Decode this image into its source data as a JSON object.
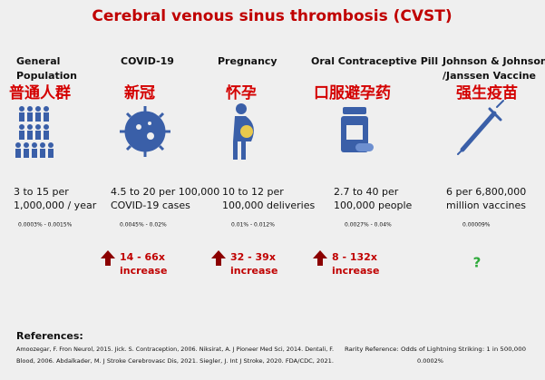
{
  "title": "Cerebral venous sinus thrombosis (CVST)",
  "columns": [
    {
      "heading": [
        "General",
        "Population"
      ],
      "chinese": "普通人群",
      "stat": [
        "3 to 15 per",
        "1,000,000 / year"
      ],
      "percent": "0.0003% - 0.0015%"
    },
    {
      "heading": [
        "COVID-19"
      ],
      "chinese": "新冠",
      "stat": [
        "4.5 to 20 per 100,000",
        "COVID-19 cases"
      ],
      "percent": "0.0045% - 0.02%",
      "increase": [
        "14 - 66x",
        "increase"
      ]
    },
    {
      "heading": [
        "Pregnancy"
      ],
      "chinese": "怀孕",
      "stat": [
        "10 to 12 per",
        "100,000 deliveries"
      ],
      "percent": "0.01% - 0.012%",
      "increase": [
        "32 - 39x",
        "increase"
      ]
    },
    {
      "heading": [
        "Oral Contraceptive Pill"
      ],
      "chinese": "口服避孕药",
      "stat": [
        "2.7 to 40 per",
        "100,000 people"
      ],
      "percent": "0.0027% - 0.04%",
      "increase": [
        "8 - 132x",
        "increase"
      ]
    },
    {
      "heading": [
        "Johnson & Johnson",
        "/Janssen Vaccine"
      ],
      "chinese": "强生疫苗",
      "stat": [
        "6 per 6,800,000",
        "million vaccines"
      ],
      "percent": "0.00009%",
      "unknown": "?"
    }
  ],
  "references": {
    "heading": "References:",
    "lines": [
      "Amoozegar, F. Fron Neurol, 2015. Jick. S. Contraception, 2006. Niksirat, A. J Pioneer Med Sci, 2014. Dentali, F.",
      "Blood, 2006. Abdalkader, M. J Stroke Cerebrovasc Dis, 2021. Siegler, J. Int J Stroke, 2020. FDA/CDC, 2021."
    ]
  },
  "rarity": {
    "text": "Rarity Reference: Odds of Lightning Striking: 1 in 500,000",
    "percent": "0.0002%"
  }
}
